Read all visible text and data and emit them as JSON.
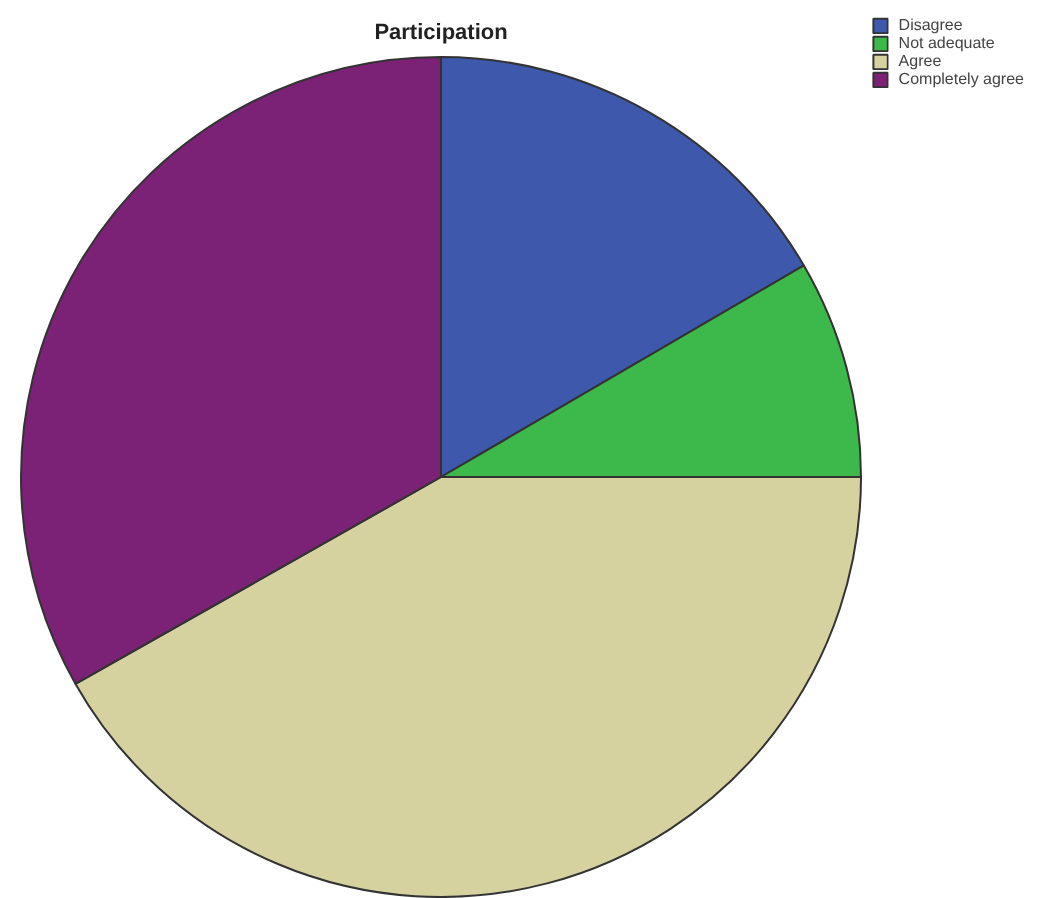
{
  "chart_data": {
    "type": "pie",
    "title": "Participation",
    "categories": [
      "Disagree",
      "Not adequate",
      "Agree",
      "Completely agree"
    ],
    "values": [
      16.6,
      8.4,
      41.8,
      33.2
    ],
    "colors": [
      "#3e58ac",
      "#3cb94a",
      "#d6d2a0",
      "#7b2276"
    ],
    "legend": "top right"
  }
}
